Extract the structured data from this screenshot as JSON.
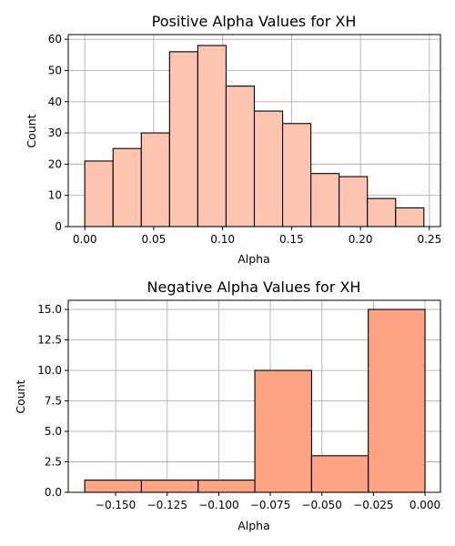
{
  "chart_data": [
    {
      "type": "bar",
      "title": "Positive Alpha Values for XH",
      "xlabel": "Alpha",
      "ylabel": "Count",
      "bin_edges": [
        0.0,
        0.0205,
        0.041,
        0.0615,
        0.082,
        0.1025,
        0.123,
        0.1435,
        0.164,
        0.1845,
        0.205,
        0.2255,
        0.246
      ],
      "values": [
        21,
        25,
        30,
        56,
        58,
        45,
        37,
        33,
        17,
        16,
        9,
        6
      ],
      "xlim": [
        -0.012,
        0.258
      ],
      "ylim": [
        0,
        61.5
      ],
      "xticks": [
        0.0,
        0.05,
        0.1,
        0.15,
        0.2,
        0.25
      ],
      "xtick_labels": [
        "0.00",
        "0.05",
        "0.10",
        "0.15",
        "0.20",
        "0.25"
      ],
      "yticks": [
        0,
        10,
        20,
        30,
        40,
        50,
        60
      ],
      "ytick_labels": [
        "0",
        "10",
        "20",
        "30",
        "40",
        "50",
        "60"
      ],
      "grid": true,
      "bar_color": "#fdc4b0"
    },
    {
      "type": "bar",
      "title": "Negative Alpha Values for XH",
      "xlabel": "Alpha",
      "ylabel": "Count",
      "bin_edges": [
        -0.165,
        -0.1375,
        -0.11,
        -0.0825,
        -0.055,
        -0.0275,
        0.0
      ],
      "values": [
        1,
        1,
        1,
        10,
        3,
        15
      ],
      "xlim": [
        -0.173,
        0.0075
      ],
      "ylim": [
        0,
        15.75
      ],
      "xticks": [
        -0.15,
        -0.125,
        -0.1,
        -0.075,
        -0.05,
        -0.025,
        0.0
      ],
      "xtick_labels": [
        "−0.150",
        "−0.125",
        "−0.100",
        "−0.075",
        "−0.050",
        "−0.025",
        "0.000"
      ],
      "yticks": [
        0.0,
        2.5,
        5.0,
        7.5,
        10.0,
        12.5,
        15.0
      ],
      "ytick_labels": [
        "0.0",
        "2.5",
        "5.0",
        "7.5",
        "10.0",
        "12.5",
        "15.0"
      ],
      "grid": true,
      "bar_color": "#fda482"
    }
  ]
}
